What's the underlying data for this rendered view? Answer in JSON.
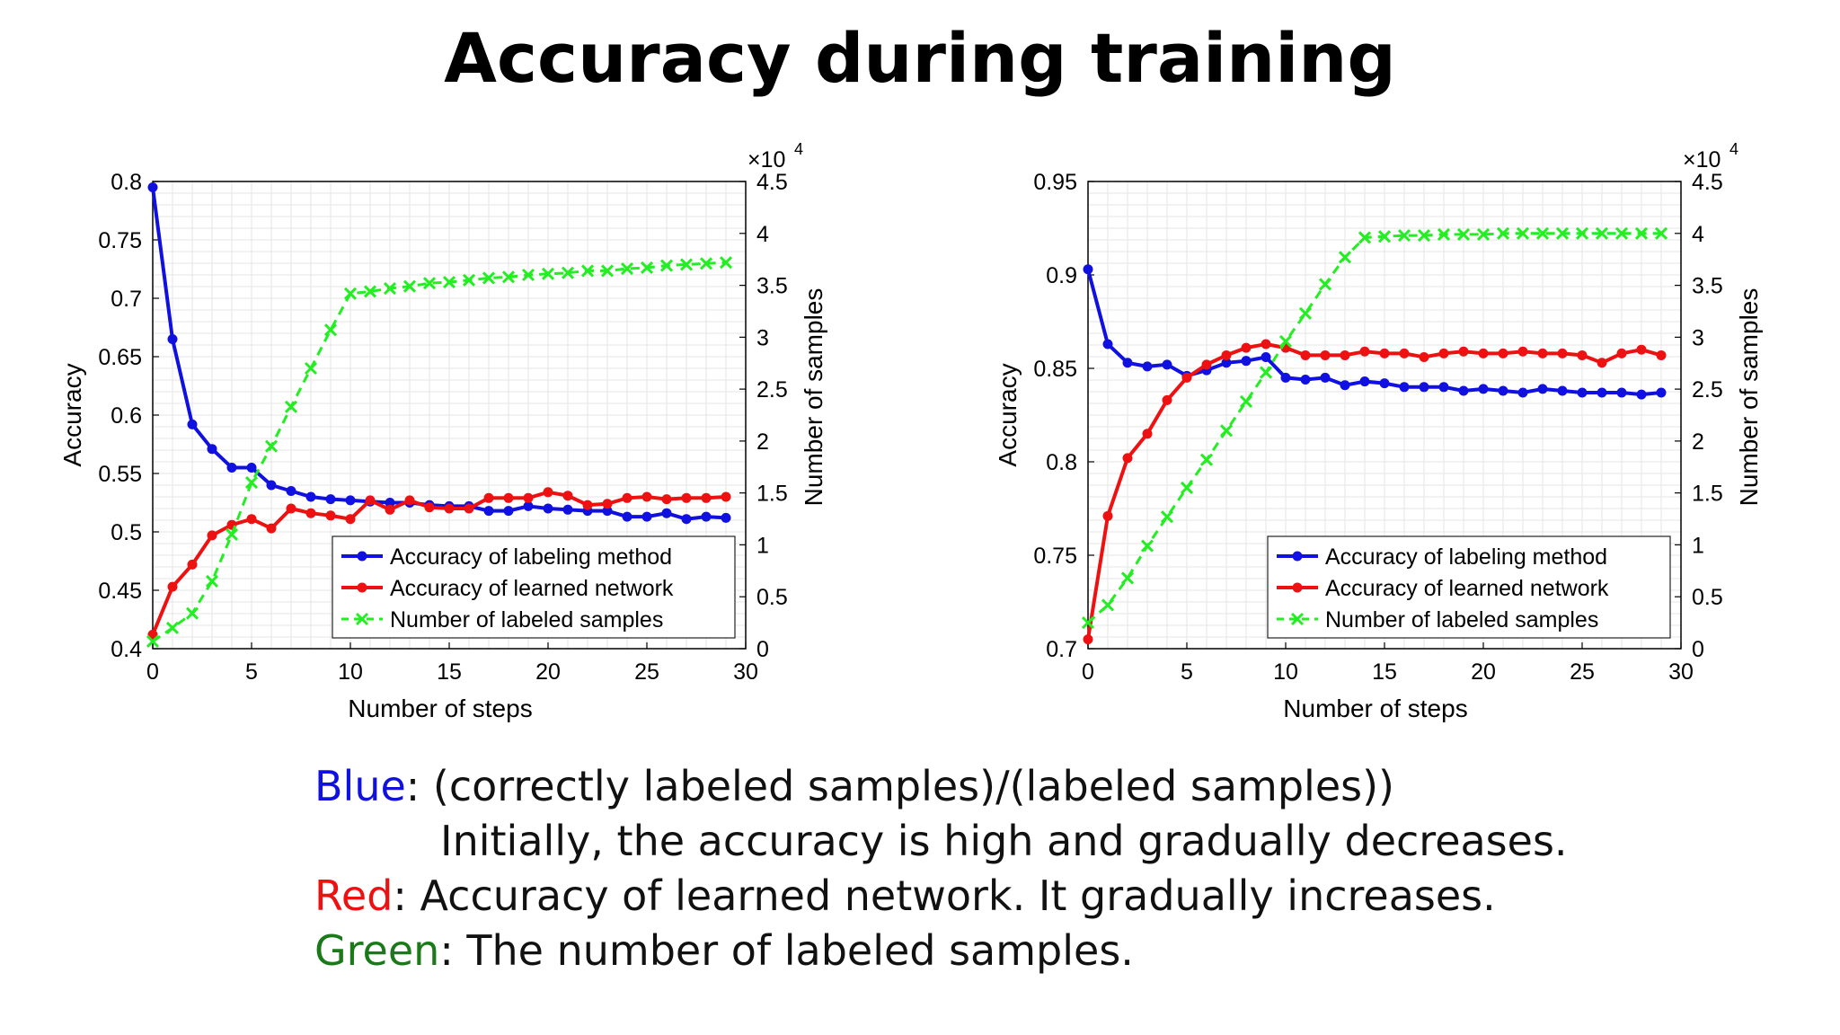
{
  "title": "Accuracy during training",
  "colors": {
    "blue": "#1010e0",
    "red": "#ee1111",
    "green": "#22ee22",
    "caption_green": "#1a7a1a"
  },
  "legend_labels": [
    "Accuracy of labeling method",
    "Accuracy of learned network",
    "Number of labeled samples"
  ],
  "caption": {
    "blue_word": "Blue",
    "blue_rest": ": (correctly labeled samples)/(labeled samples))",
    "blue_line2": "Initially, the accuracy is high and gradually decreases.",
    "red_word": "Red",
    "red_rest": ": Accuracy of learned network. It gradually increases.",
    "green_word": "Green",
    "green_rest": ": The number of labeled samples."
  },
  "chart_data": [
    {
      "type": "line",
      "xlabel": "Number of steps",
      "ylabel": "Accuracy",
      "y2label": "Number of samples",
      "y2_exponent": "×10",
      "y2_exponent_power": "4",
      "xlim": [
        0,
        30
      ],
      "ylim": [
        0.4,
        0.8
      ],
      "y2lim": [
        0,
        4.5
      ],
      "xticks": [
        "0",
        "5",
        "10",
        "15",
        "20",
        "25",
        "30"
      ],
      "yticks": [
        "0.4",
        "0.45",
        "0.5",
        "0.55",
        "0.6",
        "0.65",
        "0.7",
        "0.75",
        "0.8"
      ],
      "y2ticks": [
        "0",
        "0.5",
        "1",
        "1.5",
        "2",
        "2.5",
        "3",
        "3.5",
        "4",
        "4.5"
      ],
      "legend_position": "lower-right",
      "grid": true,
      "x": [
        0,
        1,
        2,
        3,
        4,
        5,
        6,
        7,
        8,
        9,
        10,
        11,
        12,
        13,
        14,
        15,
        16,
        17,
        18,
        19,
        20,
        21,
        22,
        23,
        24,
        25,
        26,
        27,
        28,
        29
      ],
      "series": [
        {
          "name": "Accuracy of labeling method",
          "axis": "left",
          "values": [
            0.795,
            0.665,
            0.592,
            0.571,
            0.555,
            0.555,
            0.54,
            0.535,
            0.53,
            0.528,
            0.527,
            0.526,
            0.525,
            0.525,
            0.523,
            0.522,
            0.522,
            0.518,
            0.518,
            0.522,
            0.52,
            0.519,
            0.518,
            0.518,
            0.513,
            0.513,
            0.516,
            0.511,
            0.513,
            0.512
          ]
        },
        {
          "name": "Accuracy of learned network",
          "axis": "left",
          "values": [
            0.412,
            0.453,
            0.472,
            0.497,
            0.506,
            0.511,
            0.503,
            0.52,
            0.516,
            0.514,
            0.511,
            0.527,
            0.519,
            0.527,
            0.521,
            0.52,
            0.52,
            0.529,
            0.529,
            0.529,
            0.534,
            0.531,
            0.523,
            0.524,
            0.529,
            0.53,
            0.528,
            0.529,
            0.529,
            0.53
          ]
        },
        {
          "name": "Number of labeled samples",
          "axis": "right",
          "values": [
            0.07,
            0.2,
            0.34,
            0.65,
            1.1,
            1.6,
            1.95,
            2.33,
            2.7,
            3.07,
            3.42,
            3.44,
            3.47,
            3.49,
            3.52,
            3.53,
            3.55,
            3.57,
            3.58,
            3.6,
            3.61,
            3.62,
            3.64,
            3.64,
            3.66,
            3.67,
            3.69,
            3.7,
            3.71,
            3.72
          ]
        }
      ]
    },
    {
      "type": "line",
      "xlabel": "Number of steps",
      "ylabel": "Accuracy",
      "y2label": "Number of samples",
      "y2_exponent": "×10",
      "y2_exponent_power": "4",
      "xlim": [
        0,
        30
      ],
      "ylim": [
        0.7,
        0.95
      ],
      "y2lim": [
        0,
        4.5
      ],
      "xticks": [
        "0",
        "5",
        "10",
        "15",
        "20",
        "25",
        "30"
      ],
      "yticks": [
        "0.7",
        "0.75",
        "0.8",
        "0.85",
        "0.9",
        "0.95"
      ],
      "y2ticks": [
        "0",
        "0.5",
        "1",
        "1.5",
        "2",
        "2.5",
        "3",
        "3.5",
        "4",
        "4.5"
      ],
      "legend_position": "lower-right",
      "grid": true,
      "x": [
        0,
        1,
        2,
        3,
        4,
        5,
        6,
        7,
        8,
        9,
        10,
        11,
        12,
        13,
        14,
        15,
        16,
        17,
        18,
        19,
        20,
        21,
        22,
        23,
        24,
        25,
        26,
        27,
        28,
        29
      ],
      "series": [
        {
          "name": "Accuracy of labeling method",
          "axis": "left",
          "values": [
            0.903,
            0.863,
            0.853,
            0.851,
            0.852,
            0.846,
            0.849,
            0.853,
            0.854,
            0.856,
            0.845,
            0.844,
            0.845,
            0.841,
            0.843,
            0.842,
            0.84,
            0.84,
            0.84,
            0.838,
            0.839,
            0.838,
            0.837,
            0.839,
            0.838,
            0.837,
            0.837,
            0.837,
            0.836,
            0.837
          ]
        },
        {
          "name": "Accuracy of learned network",
          "axis": "left",
          "values": [
            0.705,
            0.771,
            0.802,
            0.815,
            0.833,
            0.845,
            0.852,
            0.857,
            0.861,
            0.863,
            0.861,
            0.857,
            0.857,
            0.857,
            0.859,
            0.858,
            0.858,
            0.856,
            0.858,
            0.859,
            0.858,
            0.858,
            0.859,
            0.858,
            0.858,
            0.857,
            0.853,
            0.858,
            0.86,
            0.857
          ]
        },
        {
          "name": "Number of labeled samples",
          "axis": "right",
          "values": [
            0.25,
            0.42,
            0.68,
            0.99,
            1.27,
            1.55,
            1.82,
            2.1,
            2.38,
            2.66,
            2.96,
            3.23,
            3.51,
            3.77,
            3.96,
            3.97,
            3.98,
            3.98,
            3.99,
            3.99,
            3.99,
            4.0,
            4.0,
            4.0,
            4.0,
            4.0,
            4.0,
            4.0,
            4.0,
            4.0
          ]
        }
      ]
    }
  ]
}
